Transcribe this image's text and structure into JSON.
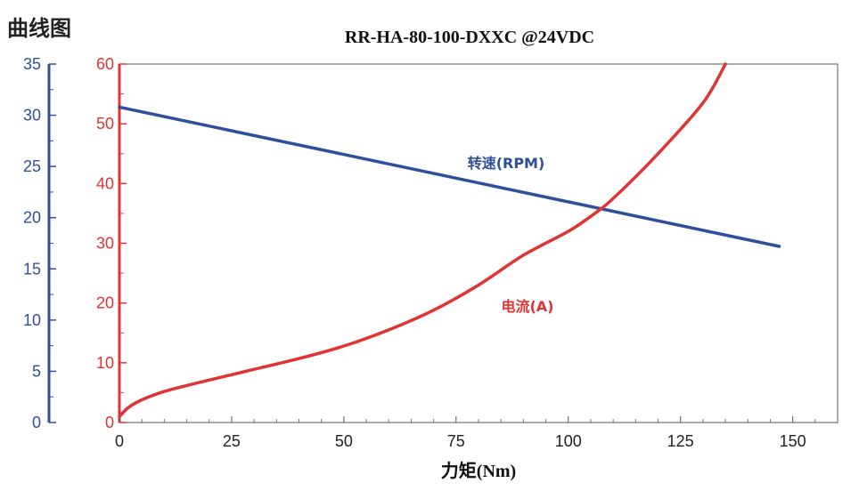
{
  "page": {
    "heading": "曲线图"
  },
  "chart_data": {
    "type": "line",
    "title": "RR-HA-80-100-DXXC @24VDC",
    "xlabel": "力矩(Nm)",
    "xlim": [
      0,
      160
    ],
    "xticks": [
      0,
      25,
      50,
      75,
      100,
      125,
      150
    ],
    "axes": {
      "speed": {
        "ylim": [
          0,
          35
        ],
        "ticks": [
          0,
          5,
          10,
          15,
          20,
          25,
          30,
          35
        ],
        "color": "#2f4e9c"
      },
      "current": {
        "ylim": [
          0,
          60
        ],
        "ticks": [
          0,
          10,
          20,
          30,
          40,
          50,
          60
        ],
        "color": "#e03434"
      }
    },
    "series": [
      {
        "name": "转速(RPM)",
        "axis": "speed",
        "color": "#2f4e9c",
        "x": [
          0,
          147
        ],
        "y": [
          30.8,
          17.2
        ]
      },
      {
        "name": "电流(A)",
        "axis": "current",
        "color": "#e03434",
        "x": [
          0,
          2,
          5,
          10,
          15,
          20,
          25,
          30,
          40,
          50,
          60,
          70,
          80,
          90,
          100,
          105,
          110,
          120,
          130,
          135
        ],
        "y": [
          1,
          2.5,
          3.8,
          5.2,
          6.2,
          7.1,
          8,
          8.9,
          10.7,
          12.8,
          15.5,
          18.8,
          23,
          28,
          32,
          34.5,
          37.5,
          45,
          53.5,
          60
        ]
      }
    ]
  }
}
